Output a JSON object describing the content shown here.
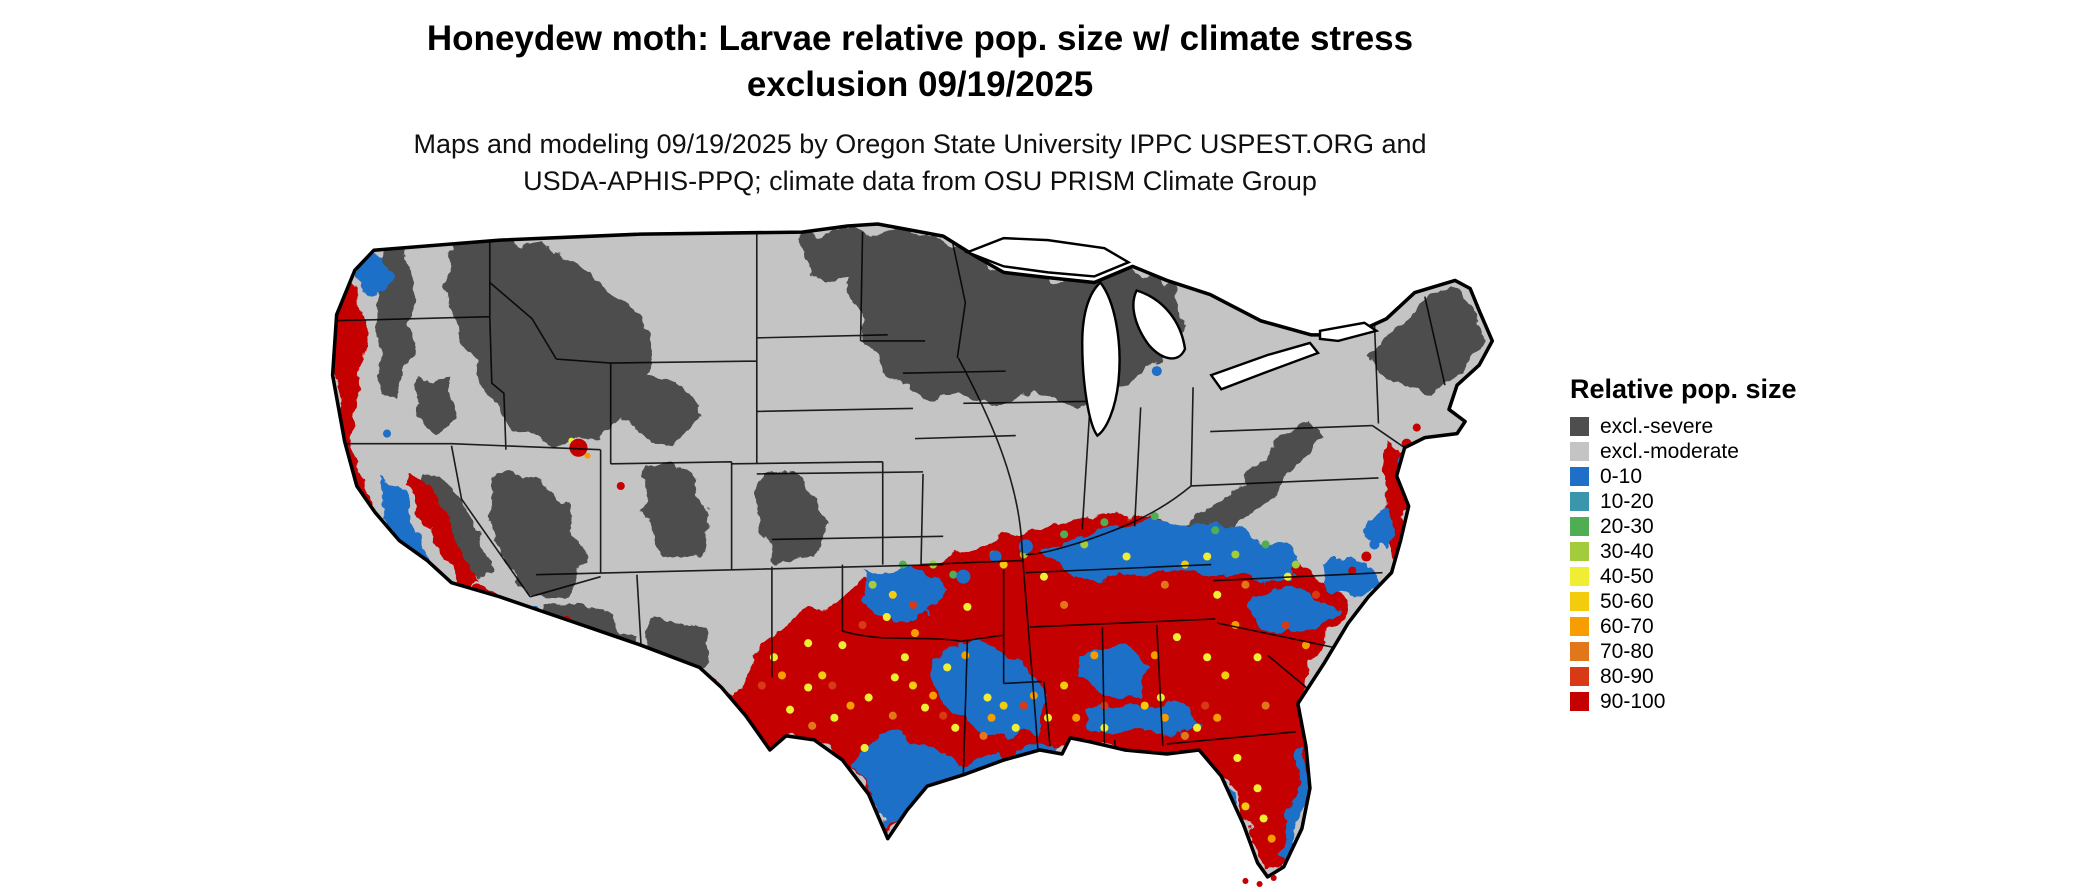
{
  "title": {
    "line1": "Honeydew moth: Larvae relative pop. size w/ climate stress",
    "line2": "exclusion 09/19/2025"
  },
  "subtitle": {
    "line1": "Maps and modeling 09/19/2025 by Oregon State University IPPC USPEST.ORG and",
    "line2": "USDA-APHIS-PPQ; climate data from OSU PRISM Climate Group"
  },
  "legend": {
    "title": "Relative pop. size",
    "items": [
      {
        "key": "severe",
        "label": "excl.-severe",
        "color": "#4e4e4e"
      },
      {
        "key": "moderate",
        "label": "excl.-moderate",
        "color": "#c4c4c4"
      },
      {
        "key": "p0",
        "label": "0-10",
        "color": "#1f6fc8"
      },
      {
        "key": "p10",
        "label": "10-20",
        "color": "#3c96ab"
      },
      {
        "key": "p20",
        "label": "20-30",
        "color": "#4fae54"
      },
      {
        "key": "p30",
        "label": "30-40",
        "color": "#a3cc3d"
      },
      {
        "key": "p40",
        "label": "40-50",
        "color": "#f0ee33"
      },
      {
        "key": "p50",
        "label": "50-60",
        "color": "#f4cc0e"
      },
      {
        "key": "p60",
        "label": "60-70",
        "color": "#f79d00"
      },
      {
        "key": "p70",
        "label": "70-80",
        "color": "#e2761b"
      },
      {
        "key": "p80",
        "label": "80-90",
        "color": "#d93a16"
      },
      {
        "key": "p90",
        "label": "90-100",
        "color": "#c40000"
      }
    ]
  }
}
